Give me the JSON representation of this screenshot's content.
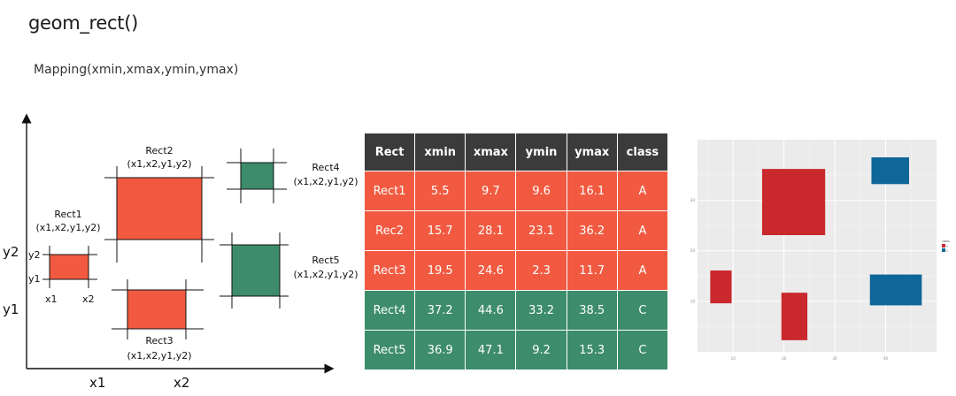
{
  "header": {
    "title": "geom_rect()",
    "subtitle": "Mapping(xmin,xmax,ymin,ymax)"
  },
  "diagram": {
    "rects": [
      {
        "name": "Rect1",
        "coords": "(x1,x2,y1,y2)",
        "class": "A"
      },
      {
        "name": "Rect2",
        "coords": "(x1,x2,y1,y2)",
        "class": "A"
      },
      {
        "name": "Rect3",
        "coords": "(x1,x2,y1,y2)",
        "class": "A"
      },
      {
        "name": "Rect4",
        "coords": "(x1,x2,y1,y2)",
        "class": "C"
      },
      {
        "name": "Rect5",
        "coords": "(x1,x2,y1,y2)",
        "class": "C"
      }
    ],
    "y_outer_labels": [
      "y2",
      "y1"
    ],
    "x_outer_labels": [
      "x1",
      "x2"
    ],
    "inner_labels": {
      "y2": "y2",
      "y1": "y1",
      "x1": "x1",
      "x2": "x2"
    },
    "colors": {
      "A": "#f15a40",
      "C": "#3d8c6c"
    }
  },
  "table": {
    "headers": [
      "Rect",
      "xmin",
      "xmax",
      "ymin",
      "ymax",
      "class"
    ],
    "rows": [
      [
        "Rect1",
        "5.5",
        "9.7",
        "9.6",
        "16.1",
        "A"
      ],
      [
        "Rec2",
        "15.7",
        "28.1",
        "23.1",
        "36.2",
        "A"
      ],
      [
        "Rect3",
        "19.5",
        "24.6",
        "2.3",
        "11.7",
        "A"
      ],
      [
        "Rect4",
        "37.2",
        "44.6",
        "33.2",
        "38.5",
        "C"
      ],
      [
        "Rect5",
        "36.9",
        "47.1",
        "9.2",
        "15.3",
        "C"
      ]
    ]
  },
  "chart_data": {
    "type": "rect",
    "title": "",
    "xlabel": "",
    "ylabel": "",
    "xlim": [
      3,
      50
    ],
    "ylim": [
      0,
      42
    ],
    "x_ticks": [
      10,
      20,
      30,
      40
    ],
    "y_ticks": [
      10,
      20,
      30
    ],
    "grid": true,
    "legend_title": "class",
    "legend_position": "right",
    "series": [
      {
        "class": "A",
        "color": "#c9282d"
      },
      {
        "class": "C",
        "color": "#0f6698"
      }
    ],
    "rects": [
      {
        "xmin": 5.5,
        "xmax": 9.7,
        "ymin": 9.6,
        "ymax": 16.1,
        "class": "A"
      },
      {
        "xmin": 15.7,
        "xmax": 28.1,
        "ymin": 23.1,
        "ymax": 36.2,
        "class": "A"
      },
      {
        "xmin": 19.5,
        "xmax": 24.6,
        "ymin": 2.3,
        "ymax": 11.7,
        "class": "A"
      },
      {
        "xmin": 37.2,
        "xmax": 44.6,
        "ymin": 33.2,
        "ymax": 38.5,
        "class": "C"
      },
      {
        "xmin": 36.9,
        "xmax": 47.1,
        "ymin": 9.2,
        "ymax": 15.3,
        "class": "C"
      }
    ]
  }
}
